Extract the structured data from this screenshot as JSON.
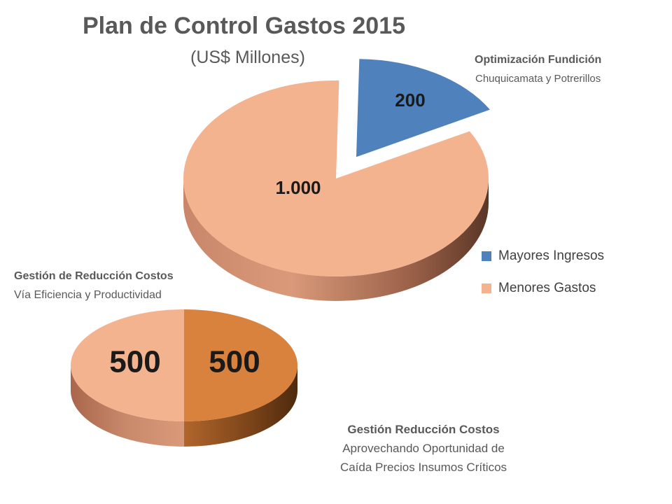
{
  "chart_data": [
    {
      "type": "pie",
      "title": "Plan de Control Gastos 2015",
      "subtitle": "(US$ Millones)",
      "categories": [
        "Mayores Ingresos",
        "Menores Gastos"
      ],
      "values": [
        200,
        1000
      ],
      "value_labels": [
        "200",
        "1.000"
      ],
      "colors": [
        "#4f81bd",
        "#f4b38f"
      ],
      "legend": {
        "position": "right",
        "entries": [
          {
            "label": "Mayores Ingresos",
            "color": "#4f81bd"
          },
          {
            "label": "Menores Gastos",
            "color": "#f4b38f"
          }
        ]
      },
      "exploded_slice": "Mayores Ingresos",
      "annotation": {
        "heading": "Optimización Fundición",
        "text": "Chuquicamata  y Potrerillos"
      }
    },
    {
      "type": "pie",
      "values": [
        500,
        500
      ],
      "value_labels": [
        "500",
        "500"
      ],
      "colors": [
        "#f4b38f",
        "#d9823e"
      ],
      "annotations": [
        {
          "heading": "Gestión de Reducción Costos",
          "lines": [
            "Vía Eficiencia y Productividad"
          ]
        },
        {
          "heading": "Gestión Reducción Costos",
          "lines": [
            "Aprovechando Oportunidad de",
            "Caída Precios Insumos Críticos"
          ]
        }
      ]
    }
  ]
}
